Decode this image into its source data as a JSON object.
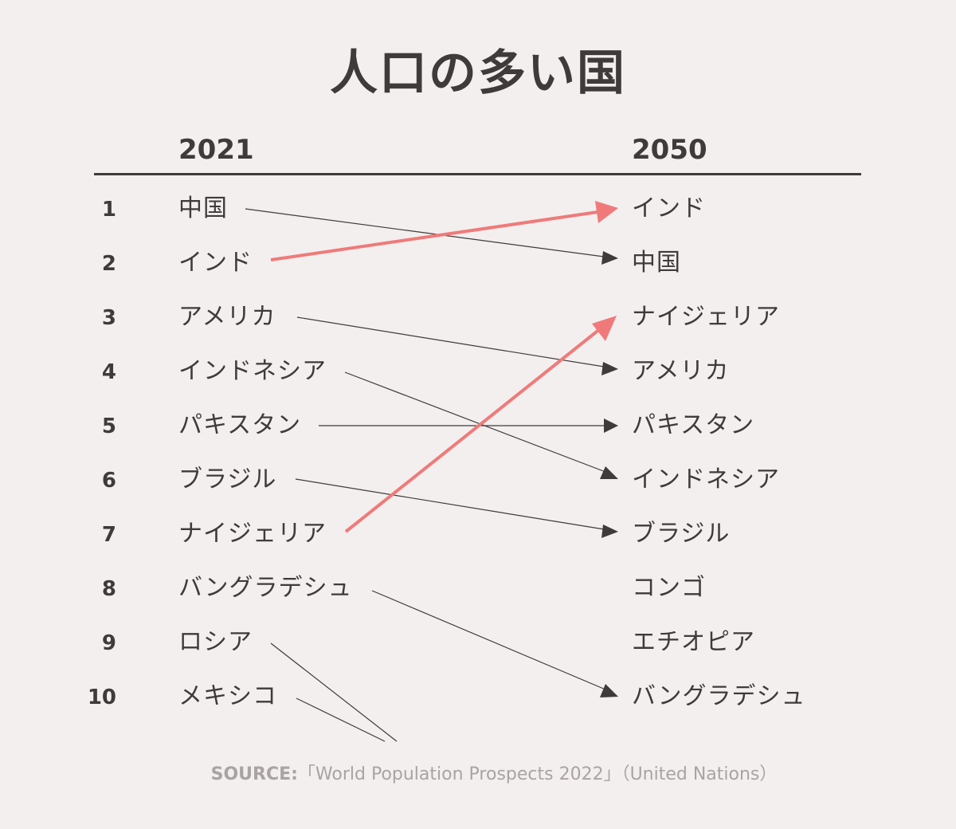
{
  "title": "人口の多い国",
  "year_left": "2021",
  "year_right": "2050",
  "ranks": [
    "1",
    "2",
    "3",
    "4",
    "5",
    "6",
    "7",
    "8",
    "9",
    "10"
  ],
  "left_countries": [
    "中国",
    "インド",
    "アメリカ",
    "インドネシア",
    "パキスタン",
    "ブラジル",
    "ナイジェリア",
    "バングラデシュ",
    "ロシア",
    "メキシコ"
  ],
  "right_countries": [
    "インド",
    "中国",
    "ナイジェリア",
    "アメリカ",
    "パキスタン",
    "インドネシア",
    "ブラジル",
    "コンゴ",
    "エチオピア",
    "バングラデシュ"
  ],
  "source_label": "SOURCE:",
  "source_text": "「World Population Prospects 2022」（United Nations）",
  "colors": {
    "background": "#f3efee",
    "text": "#3f3b3b",
    "highlight": "#f07a7a",
    "source": "#a9a4a3"
  },
  "connections": [
    {
      "from": 1,
      "to": 2,
      "highlight": false
    },
    {
      "from": 2,
      "to": 1,
      "highlight": true
    },
    {
      "from": 3,
      "to": 4,
      "highlight": false
    },
    {
      "from": 4,
      "to": 6,
      "highlight": false
    },
    {
      "from": 5,
      "to": 5,
      "highlight": false
    },
    {
      "from": 6,
      "to": 7,
      "highlight": false
    },
    {
      "from": 7,
      "to": 3,
      "highlight": true
    },
    {
      "from": 8,
      "to": 10,
      "highlight": false
    },
    {
      "from": 9,
      "to": null,
      "highlight": false
    },
    {
      "from": 10,
      "to": null,
      "highlight": false
    }
  ]
}
